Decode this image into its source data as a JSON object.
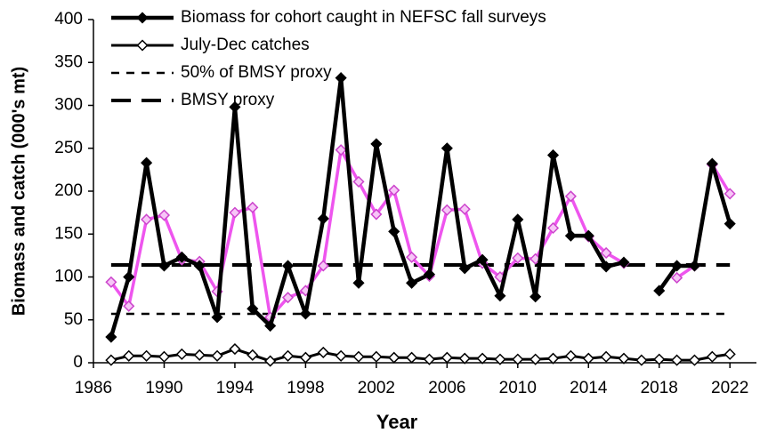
{
  "chart_data": {
    "type": "line",
    "xlabel": "Year",
    "ylabel": "Biomass and catch (000's mt)",
    "x": [
      1987,
      1988,
      1989,
      1990,
      1991,
      1992,
      1993,
      1994,
      1995,
      1996,
      1997,
      1998,
      1999,
      2000,
      2001,
      2002,
      2003,
      2004,
      2005,
      2006,
      2007,
      2008,
      2009,
      2010,
      2011,
      2012,
      2013,
      2014,
      2015,
      2016,
      2017,
      2018,
      2019,
      2020,
      2021,
      2022
    ],
    "series": [
      {
        "name": "Biomass for cohort caught in NEFSC fall surveys",
        "color": "#000000",
        "marker": "filled",
        "values": [
          30,
          100,
          233,
          113,
          123,
          113,
          53,
          298,
          63,
          43,
          113,
          57,
          168,
          332,
          93,
          255,
          153,
          93,
          103,
          250,
          110,
          120,
          78,
          167,
          77,
          242,
          148,
          148,
          112,
          117,
          null,
          84,
          113,
          113,
          232,
          162
        ]
      },
      {
        "name": "July-Dec catches",
        "color": "#000000",
        "marker": "open",
        "values": [
          3,
          8,
          8,
          7,
          10,
          9,
          8,
          16,
          9,
          2,
          8,
          6,
          12,
          8,
          7,
          7,
          6,
          6,
          4,
          6,
          5,
          5,
          4,
          4,
          4,
          5,
          8,
          5,
          7,
          5,
          3,
          4,
          3,
          3,
          7,
          10
        ]
      },
      {
        "color": "#ee55ee",
        "marker": "pink",
        "values": [
          94,
          66,
          167,
          172,
          120,
          118,
          83,
          175,
          181,
          53,
          76,
          84,
          113,
          248,
          211,
          173,
          201,
          123,
          101,
          178,
          179,
          116,
          100,
          122,
          121,
          157,
          194,
          147,
          128,
          116,
          null,
          null,
          99,
          113,
          231,
          197
        ]
      }
    ],
    "reference_lines": [
      {
        "name": "50% of BMSY proxy",
        "value": 57,
        "dash": "short"
      },
      {
        "name": "BMSY proxy",
        "value": 114,
        "dash": "long"
      }
    ],
    "xlim": [
      1986,
      2023.5
    ],
    "xticks": [
      1986,
      1990,
      1994,
      1998,
      2002,
      2006,
      2010,
      2014,
      2018,
      2022
    ],
    "ylim": [
      0,
      400
    ],
    "yticks": [
      0,
      50,
      100,
      150,
      200,
      250,
      300,
      350,
      400
    ]
  }
}
